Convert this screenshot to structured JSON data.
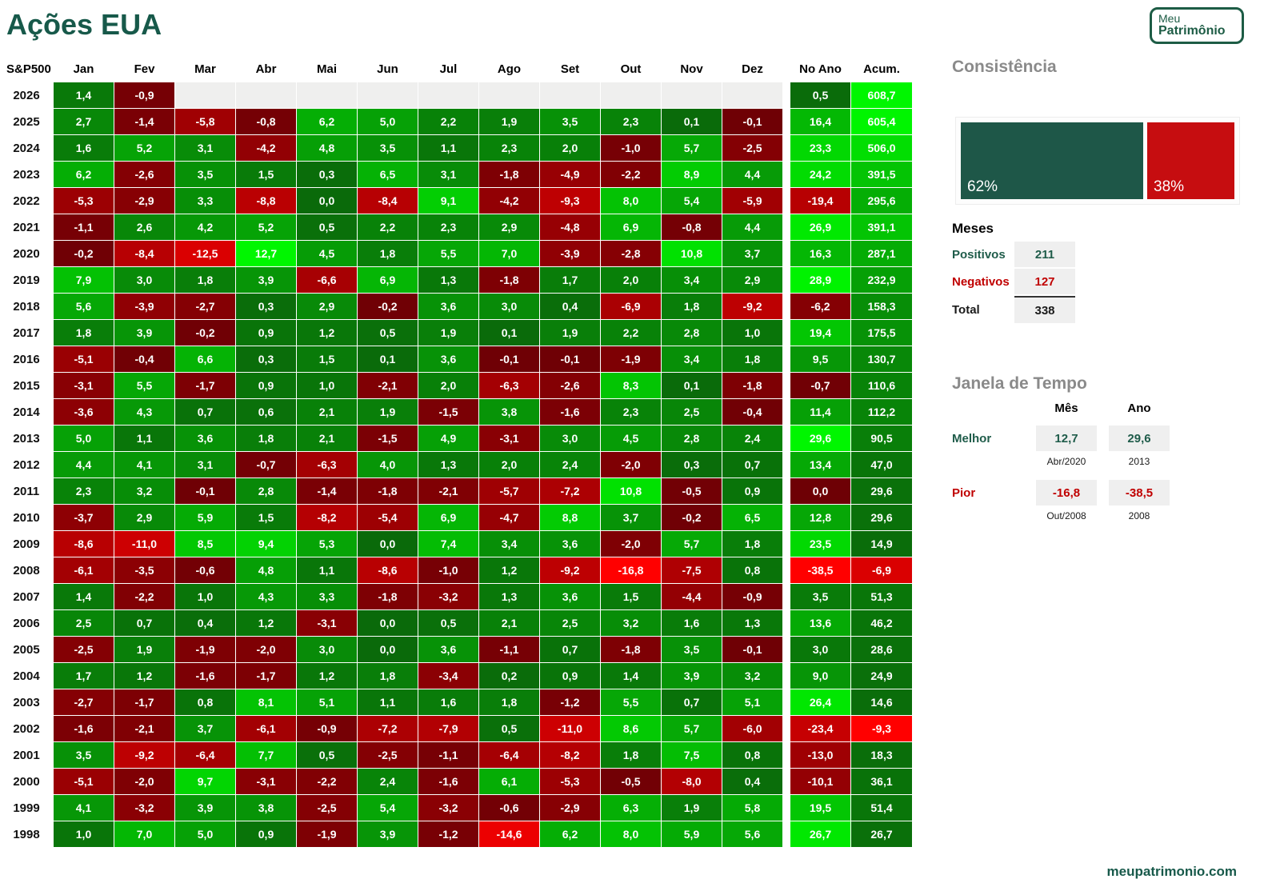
{
  "title": "Ações EUA",
  "logo": {
    "line1": "Meu",
    "line2": "Patrimônio"
  },
  "footer_url": "meupatrimonio.com",
  "colors": {
    "brand_green": "#17594a",
    "positive_dark": "#0a6a0a",
    "positive_bright": "#00f600",
    "negative_dark": "#6e0005",
    "negative_bright": "#ff0000",
    "empty_cell": "#efefee",
    "stat_red": "#c00000"
  },
  "chart_data": {
    "type": "heatmap",
    "title": "Ações EUA",
    "corner_label": "S&P500",
    "month_headers": [
      "Jan",
      "Fev",
      "Mar",
      "Abr",
      "Mai",
      "Jun",
      "Jul",
      "Ago",
      "Set",
      "Out",
      "Nov",
      "Dez"
    ],
    "no_ano_header": "No Ano",
    "acum_header": "Acum.",
    "rows": [
      {
        "year": "2026",
        "monthly": [
          1.4,
          -0.9,
          null,
          null,
          null,
          null,
          null,
          null,
          null,
          null,
          null,
          null
        ],
        "no_ano": 0.5,
        "acum": 608.7
      },
      {
        "year": "2025",
        "monthly": [
          2.7,
          -1.4,
          -5.8,
          -0.8,
          6.2,
          5.0,
          2.2,
          1.9,
          3.5,
          2.3,
          0.1,
          -0.1
        ],
        "no_ano": 16.4,
        "acum": 605.4
      },
      {
        "year": "2024",
        "monthly": [
          1.6,
          5.2,
          3.1,
          -4.2,
          4.8,
          3.5,
          1.1,
          2.3,
          2.0,
          -1.0,
          5.7,
          -2.5
        ],
        "no_ano": 23.3,
        "acum": 506.0
      },
      {
        "year": "2023",
        "monthly": [
          6.2,
          -2.6,
          3.5,
          1.5,
          0.3,
          6.5,
          3.1,
          -1.8,
          -4.9,
          -2.2,
          8.9,
          4.4
        ],
        "no_ano": 24.2,
        "acum": 391.5
      },
      {
        "year": "2022",
        "monthly": [
          -5.3,
          -2.9,
          3.3,
          -8.8,
          0.0,
          -8.4,
          9.1,
          -4.2,
          -9.3,
          8.0,
          5.4,
          -5.9
        ],
        "no_ano": -19.4,
        "acum": 295.6
      },
      {
        "year": "2021",
        "monthly": [
          -1.1,
          2.6,
          4.2,
          5.2,
          0.5,
          2.2,
          2.3,
          2.9,
          -4.8,
          6.9,
          -0.8,
          4.4
        ],
        "no_ano": 26.9,
        "acum": 391.1
      },
      {
        "year": "2020",
        "monthly": [
          -0.2,
          -8.4,
          -12.5,
          12.7,
          4.5,
          1.8,
          5.5,
          7.0,
          -3.9,
          -2.8,
          10.8,
          3.7
        ],
        "no_ano": 16.3,
        "acum": 287.1
      },
      {
        "year": "2019",
        "monthly": [
          7.9,
          3.0,
          1.8,
          3.9,
          -6.6,
          6.9,
          1.3,
          -1.8,
          1.7,
          2.0,
          3.4,
          2.9
        ],
        "no_ano": 28.9,
        "acum": 232.9
      },
      {
        "year": "2018",
        "monthly": [
          5.6,
          -3.9,
          -2.7,
          0.3,
          2.9,
          -0.2,
          3.6,
          3.0,
          0.4,
          -6.9,
          1.8,
          -9.2
        ],
        "no_ano": -6.2,
        "acum": 158.3
      },
      {
        "year": "2017",
        "monthly": [
          1.8,
          3.9,
          -0.2,
          0.9,
          1.2,
          0.5,
          1.9,
          0.1,
          1.9,
          2.2,
          2.8,
          1.0
        ],
        "no_ano": 19.4,
        "acum": 175.5
      },
      {
        "year": "2016",
        "monthly": [
          -5.1,
          -0.4,
          6.6,
          0.3,
          1.5,
          0.1,
          3.6,
          -0.1,
          -0.1,
          -1.9,
          3.4,
          1.8
        ],
        "no_ano": 9.5,
        "acum": 130.7
      },
      {
        "year": "2015",
        "monthly": [
          -3.1,
          5.5,
          -1.7,
          0.9,
          1.0,
          -2.1,
          2.0,
          -6.3,
          -2.6,
          8.3,
          0.1,
          -1.8
        ],
        "no_ano": -0.7,
        "acum": 110.6
      },
      {
        "year": "2014",
        "monthly": [
          -3.6,
          4.3,
          0.7,
          0.6,
          2.1,
          1.9,
          -1.5,
          3.8,
          -1.6,
          2.3,
          2.5,
          -0.4
        ],
        "no_ano": 11.4,
        "acum": 112.2
      },
      {
        "year": "2013",
        "monthly": [
          5.0,
          1.1,
          3.6,
          1.8,
          2.1,
          -1.5,
          4.9,
          -3.1,
          3.0,
          4.5,
          2.8,
          2.4
        ],
        "no_ano": 29.6,
        "acum": 90.5
      },
      {
        "year": "2012",
        "monthly": [
          4.4,
          4.1,
          3.1,
          -0.7,
          -6.3,
          4.0,
          1.3,
          2.0,
          2.4,
          -2.0,
          0.3,
          0.7
        ],
        "no_ano": 13.4,
        "acum": 47.0
      },
      {
        "year": "2011",
        "monthly": [
          2.3,
          3.2,
          -0.1,
          2.8,
          -1.4,
          -1.8,
          -2.1,
          -5.7,
          -7.2,
          10.8,
          -0.5,
          0.9
        ],
        "no_ano": 0.0,
        "acum": 29.6
      },
      {
        "year": "2010",
        "monthly": [
          -3.7,
          2.9,
          5.9,
          1.5,
          -8.2,
          -5.4,
          6.9,
          -4.7,
          8.8,
          3.7,
          -0.2,
          6.5
        ],
        "no_ano": 12.8,
        "acum": 29.6
      },
      {
        "year": "2009",
        "monthly": [
          -8.6,
          -11.0,
          8.5,
          9.4,
          5.3,
          0.0,
          7.4,
          3.4,
          3.6,
          -2.0,
          5.7,
          1.8
        ],
        "no_ano": 23.5,
        "acum": 14.9
      },
      {
        "year": "2008",
        "monthly": [
          -6.1,
          -3.5,
          -0.6,
          4.8,
          1.1,
          -8.6,
          -1.0,
          1.2,
          -9.2,
          -16.8,
          -7.5,
          0.8
        ],
        "no_ano": -38.5,
        "acum": -6.9
      },
      {
        "year": "2007",
        "monthly": [
          1.4,
          -2.2,
          1.0,
          4.3,
          3.3,
          -1.8,
          -3.2,
          1.3,
          3.6,
          1.5,
          -4.4,
          -0.9
        ],
        "no_ano": 3.5,
        "acum": 51.3
      },
      {
        "year": "2006",
        "monthly": [
          2.5,
          0.7,
          0.4,
          1.2,
          -3.1,
          0.0,
          0.5,
          2.1,
          2.5,
          3.2,
          1.6,
          1.3
        ],
        "no_ano": 13.6,
        "acum": 46.2
      },
      {
        "year": "2005",
        "monthly": [
          -2.5,
          1.9,
          -1.9,
          -2.0,
          3.0,
          0.0,
          3.6,
          -1.1,
          0.7,
          -1.8,
          3.5,
          -0.1
        ],
        "no_ano": 3.0,
        "acum": 28.6
      },
      {
        "year": "2004",
        "monthly": [
          1.7,
          1.2,
          -1.6,
          -1.7,
          1.2,
          1.8,
          -3.4,
          0.2,
          0.9,
          1.4,
          3.9,
          3.2
        ],
        "no_ano": 9.0,
        "acum": 24.9
      },
      {
        "year": "2003",
        "monthly": [
          -2.7,
          -1.7,
          0.8,
          8.1,
          5.1,
          1.1,
          1.6,
          1.8,
          -1.2,
          5.5,
          0.7,
          5.1
        ],
        "no_ano": 26.4,
        "acum": 14.6
      },
      {
        "year": "2002",
        "monthly": [
          -1.6,
          -2.1,
          3.7,
          -6.1,
          -0.9,
          -7.2,
          -7.9,
          0.5,
          -11.0,
          8.6,
          5.7,
          -6.0
        ],
        "no_ano": -23.4,
        "acum": -9.3
      },
      {
        "year": "2001",
        "monthly": [
          3.5,
          -9.2,
          -6.4,
          7.7,
          0.5,
          -2.5,
          -1.1,
          -6.4,
          -8.2,
          1.8,
          7.5,
          0.8
        ],
        "no_ano": -13.0,
        "acum": 18.3
      },
      {
        "year": "2000",
        "monthly": [
          -5.1,
          -2.0,
          9.7,
          -3.1,
          -2.2,
          2.4,
          -1.6,
          6.1,
          -5.3,
          -0.5,
          -8.0,
          0.4
        ],
        "no_ano": -10.1,
        "acum": 36.1
      },
      {
        "year": "1999",
        "monthly": [
          4.1,
          -3.2,
          3.9,
          3.8,
          -2.5,
          5.4,
          -3.2,
          -0.6,
          -2.9,
          6.3,
          1.9,
          5.8
        ],
        "no_ano": 19.5,
        "acum": 51.4
      },
      {
        "year": "1998",
        "monthly": [
          1.0,
          7.0,
          5.0,
          0.9,
          -1.9,
          3.9,
          -1.2,
          -14.6,
          6.2,
          8.0,
          5.9,
          5.6
        ],
        "no_ano": 26.7,
        "acum": 26.7
      }
    ]
  },
  "consistencia": {
    "heading": "Consistência",
    "pos_pct": 62,
    "neg_pct": 38,
    "pos_label": "62%",
    "neg_label": "38%"
  },
  "meses": {
    "heading": "Meses",
    "positivos_label": "Positivos",
    "positivos_value": "211",
    "negativos_label": "Negativos",
    "negativos_value": "127",
    "total_label": "Total",
    "total_value": "338"
  },
  "janela": {
    "heading": "Janela de Tempo",
    "col_mes": "Mês",
    "col_ano": "Ano",
    "melhor_label": "Melhor",
    "melhor_mes": "12,7",
    "melhor_mes_sub": "Abr/2020",
    "melhor_ano": "29,6",
    "melhor_ano_sub": "2013",
    "pior_label": "Pior",
    "pior_mes": "-16,8",
    "pior_mes_sub": "Out/2008",
    "pior_ano": "-38,5",
    "pior_ano_sub": "2008"
  }
}
